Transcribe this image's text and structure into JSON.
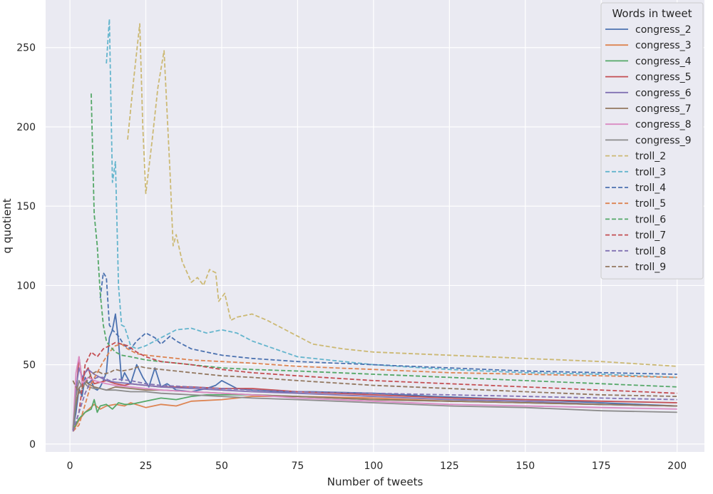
{
  "chart_data": {
    "type": "line",
    "title": "",
    "xlabel": "Number of tweets",
    "ylabel": "q quotient",
    "xlim": [
      -8,
      209
    ],
    "ylim": [
      -5,
      280
    ],
    "xticks": [
      0,
      25,
      50,
      75,
      100,
      125,
      150,
      175,
      200
    ],
    "yticks": [
      0,
      50,
      100,
      150,
      200,
      250
    ],
    "grid": true,
    "legend": {
      "title": "Words in tweet",
      "placement": "top-right"
    },
    "series": [
      {
        "name": "congress_2",
        "color": "#4c72b0",
        "style": "solid",
        "x": [
          1,
          2,
          3,
          4,
          5,
          6,
          7,
          8,
          9,
          10,
          11,
          12,
          13,
          14,
          15,
          16,
          17,
          18,
          20,
          22,
          24,
          26,
          28,
          30,
          32,
          35,
          40,
          45,
          48,
          50,
          55,
          60,
          70,
          80,
          100,
          120,
          150,
          175,
          200
        ],
        "y": [
          9,
          20,
          35,
          30,
          42,
          38,
          40,
          35,
          34,
          36,
          40,
          45,
          67,
          72,
          82,
          65,
          40,
          45,
          38,
          50,
          42,
          36,
          48,
          36,
          38,
          34,
          33,
          35,
          37,
          40,
          35,
          34,
          33,
          33,
          32,
          30,
          28,
          26,
          24
        ]
      },
      {
        "name": "congress_3",
        "color": "#dd8452",
        "style": "solid",
        "x": [
          1,
          3,
          5,
          8,
          10,
          12,
          15,
          18,
          20,
          25,
          30,
          35,
          40,
          50,
          60,
          75,
          100,
          125,
          150,
          175,
          200
        ],
        "y": [
          8,
          15,
          20,
          25,
          22,
          24,
          25,
          24,
          26,
          23,
          25,
          24,
          27,
          28,
          30,
          30,
          29,
          27,
          26,
          25,
          24
        ]
      },
      {
        "name": "congress_4",
        "color": "#55a868",
        "style": "solid",
        "x": [
          1,
          3,
          5,
          7,
          8,
          9,
          10,
          12,
          14,
          16,
          18,
          20,
          25,
          30,
          35,
          40,
          45,
          50,
          60,
          75,
          100,
          125,
          150,
          175,
          200
        ],
        "y": [
          9,
          16,
          20,
          22,
          28,
          20,
          24,
          25,
          22,
          26,
          25,
          25,
          27,
          29,
          28,
          30,
          31,
          31,
          31,
          30,
          28,
          27,
          26,
          25,
          24
        ]
      },
      {
        "name": "congress_5",
        "color": "#c44e52",
        "style": "solid",
        "x": [
          1,
          2,
          3,
          4,
          5,
          6,
          7,
          8,
          10,
          12,
          15,
          18,
          20,
          25,
          30,
          40,
          50,
          60,
          75,
          100,
          125,
          150,
          175,
          200
        ],
        "y": [
          9,
          30,
          55,
          40,
          45,
          48,
          42,
          38,
          39,
          40,
          38,
          37,
          38,
          37,
          36,
          36,
          35,
          35,
          33,
          31,
          29,
          28,
          27,
          26
        ]
      },
      {
        "name": "congress_6",
        "color": "#8172b3",
        "style": "solid",
        "x": [
          1,
          2,
          3,
          4,
          5,
          6,
          8,
          10,
          12,
          15,
          20,
          25,
          30,
          40,
          50,
          60,
          75,
          100,
          125,
          150,
          175,
          200
        ],
        "y": [
          9,
          35,
          48,
          42,
          45,
          47,
          44,
          42,
          40,
          39,
          38,
          37,
          36,
          35,
          34,
          33,
          32,
          30,
          28,
          27,
          25,
          24
        ]
      },
      {
        "name": "congress_7",
        "color": "#937860",
        "style": "solid",
        "x": [
          1,
          2,
          3,
          4,
          5,
          6,
          8,
          10,
          12,
          15,
          20,
          25,
          30,
          40,
          50,
          60,
          75,
          100,
          125,
          150,
          175,
          200
        ],
        "y": [
          9,
          25,
          35,
          38,
          40,
          38,
          36,
          35,
          34,
          36,
          35,
          34,
          34,
          33,
          32,
          31,
          30,
          28,
          27,
          26,
          25,
          24
        ]
      },
      {
        "name": "congress_8",
        "color": "#da8bc3",
        "style": "solid",
        "x": [
          1,
          2,
          3,
          4,
          5,
          6,
          8,
          10,
          12,
          15,
          20,
          25,
          30,
          40,
          50,
          60,
          75,
          100,
          125,
          150,
          175,
          200
        ],
        "y": [
          9,
          45,
          55,
          38,
          40,
          42,
          40,
          39,
          38,
          37,
          36,
          35,
          34,
          33,
          32,
          31,
          29,
          27,
          25,
          24,
          23,
          22
        ]
      },
      {
        "name": "congress_9",
        "color": "#8c8c8c",
        "style": "solid",
        "x": [
          1,
          2,
          3,
          4,
          5,
          6,
          8,
          10,
          12,
          15,
          20,
          25,
          30,
          40,
          50,
          60,
          75,
          100,
          125,
          150,
          175,
          200
        ],
        "y": [
          9,
          30,
          40,
          36,
          38,
          36,
          35,
          35,
          34,
          34,
          33,
          33,
          32,
          31,
          30,
          29,
          28,
          26,
          24,
          23,
          21,
          20
        ]
      },
      {
        "name": "troll_2",
        "color": "#ccb974",
        "style": "dashed",
        "x": [
          19,
          21,
          23,
          24,
          25,
          27,
          29,
          31,
          33,
          34,
          35,
          37,
          40,
          42,
          44,
          46,
          48,
          49,
          51,
          53,
          55,
          60,
          65,
          70,
          75,
          80,
          90,
          100,
          125,
          150,
          175,
          200
        ],
        "y": [
          192,
          230,
          265,
          200,
          158,
          190,
          225,
          248,
          170,
          125,
          132,
          115,
          102,
          105,
          100,
          110,
          108,
          90,
          95,
          78,
          80,
          82,
          78,
          73,
          68,
          63,
          60,
          58,
          56,
          54,
          52,
          49
        ]
      },
      {
        "name": "troll_3",
        "color": "#64b5cd",
        "style": "dashed",
        "x": [
          12,
          13,
          14,
          15,
          16,
          17,
          18,
          20,
          22,
          25,
          30,
          35,
          40,
          45,
          50,
          55,
          60,
          75,
          100,
          125,
          150,
          175,
          200
        ],
        "y": [
          240,
          268,
          165,
          178,
          100,
          75,
          74,
          62,
          60,
          62,
          67,
          72,
          73,
          70,
          72,
          70,
          65,
          55,
          50,
          47,
          45,
          44,
          42
        ]
      },
      {
        "name": "troll_4",
        "color": "#4c72b0",
        "style": "dashed",
        "x": [
          10,
          11,
          12,
          13,
          14,
          15,
          16,
          18,
          20,
          22,
          25,
          28,
          30,
          33,
          35,
          40,
          45,
          50,
          60,
          75,
          100,
          125,
          150,
          175,
          200
        ],
        "y": [
          92,
          108,
          105,
          75,
          72,
          70,
          68,
          62,
          60,
          65,
          70,
          67,
          63,
          68,
          65,
          60,
          58,
          56,
          54,
          52,
          50,
          48,
          46,
          45,
          44
        ]
      },
      {
        "name": "troll_5",
        "color": "#dd8452",
        "style": "dashed",
        "x": [
          1,
          3,
          5,
          7,
          9,
          11,
          13,
          15,
          17,
          19,
          22,
          25,
          30,
          40,
          50,
          60,
          75,
          100,
          125,
          150,
          175,
          200
        ],
        "y": [
          8,
          12,
          25,
          38,
          45,
          52,
          58,
          62,
          63,
          60,
          57,
          56,
          55,
          53,
          52,
          51,
          49,
          47,
          45,
          44,
          43,
          42
        ]
      },
      {
        "name": "troll_6",
        "color": "#55a868",
        "style": "dashed",
        "x": [
          7,
          8,
          9,
          10,
          11,
          12,
          13,
          14,
          15,
          17,
          20,
          25,
          30,
          40,
          50,
          60,
          75,
          100,
          125,
          150,
          175,
          200
        ],
        "y": [
          221,
          145,
          125,
          95,
          75,
          65,
          62,
          60,
          58,
          56,
          55,
          53,
          52,
          50,
          48,
          47,
          46,
          44,
          42,
          40,
          38,
          36
        ]
      },
      {
        "name": "troll_7",
        "color": "#c44e52",
        "style": "dashed",
        "x": [
          1,
          3,
          5,
          7,
          9,
          11,
          13,
          15,
          17,
          19,
          22,
          25,
          30,
          40,
          50,
          60,
          75,
          100,
          125,
          150,
          175,
          200
        ],
        "y": [
          8,
          20,
          50,
          58,
          55,
          60,
          62,
          64,
          63,
          62,
          58,
          55,
          52,
          50,
          47,
          45,
          43,
          40,
          38,
          36,
          34,
          32
        ]
      },
      {
        "name": "troll_8",
        "color": "#8172b3",
        "style": "dashed",
        "x": [
          1,
          3,
          5,
          7,
          9,
          11,
          13,
          15,
          20,
          25,
          30,
          40,
          50,
          60,
          75,
          100,
          125,
          150,
          175,
          200
        ],
        "y": [
          8,
          20,
          32,
          40,
          42,
          42,
          40,
          41,
          40,
          38,
          37,
          36,
          35,
          34,
          33,
          32,
          31,
          30,
          29,
          28
        ]
      },
      {
        "name": "troll_9",
        "color": "#937860",
        "style": "dashed",
        "x": [
          1,
          3,
          5,
          7,
          9,
          11,
          13,
          15,
          17,
          20,
          23,
          25,
          30,
          40,
          50,
          60,
          75,
          100,
          125,
          150,
          175,
          200
        ],
        "y": [
          40,
          32,
          38,
          44,
          46,
          44,
          45,
          47,
          46,
          47,
          49,
          48,
          47,
          45,
          43,
          42,
          40,
          37,
          35,
          33,
          31,
          30
        ]
      }
    ]
  }
}
